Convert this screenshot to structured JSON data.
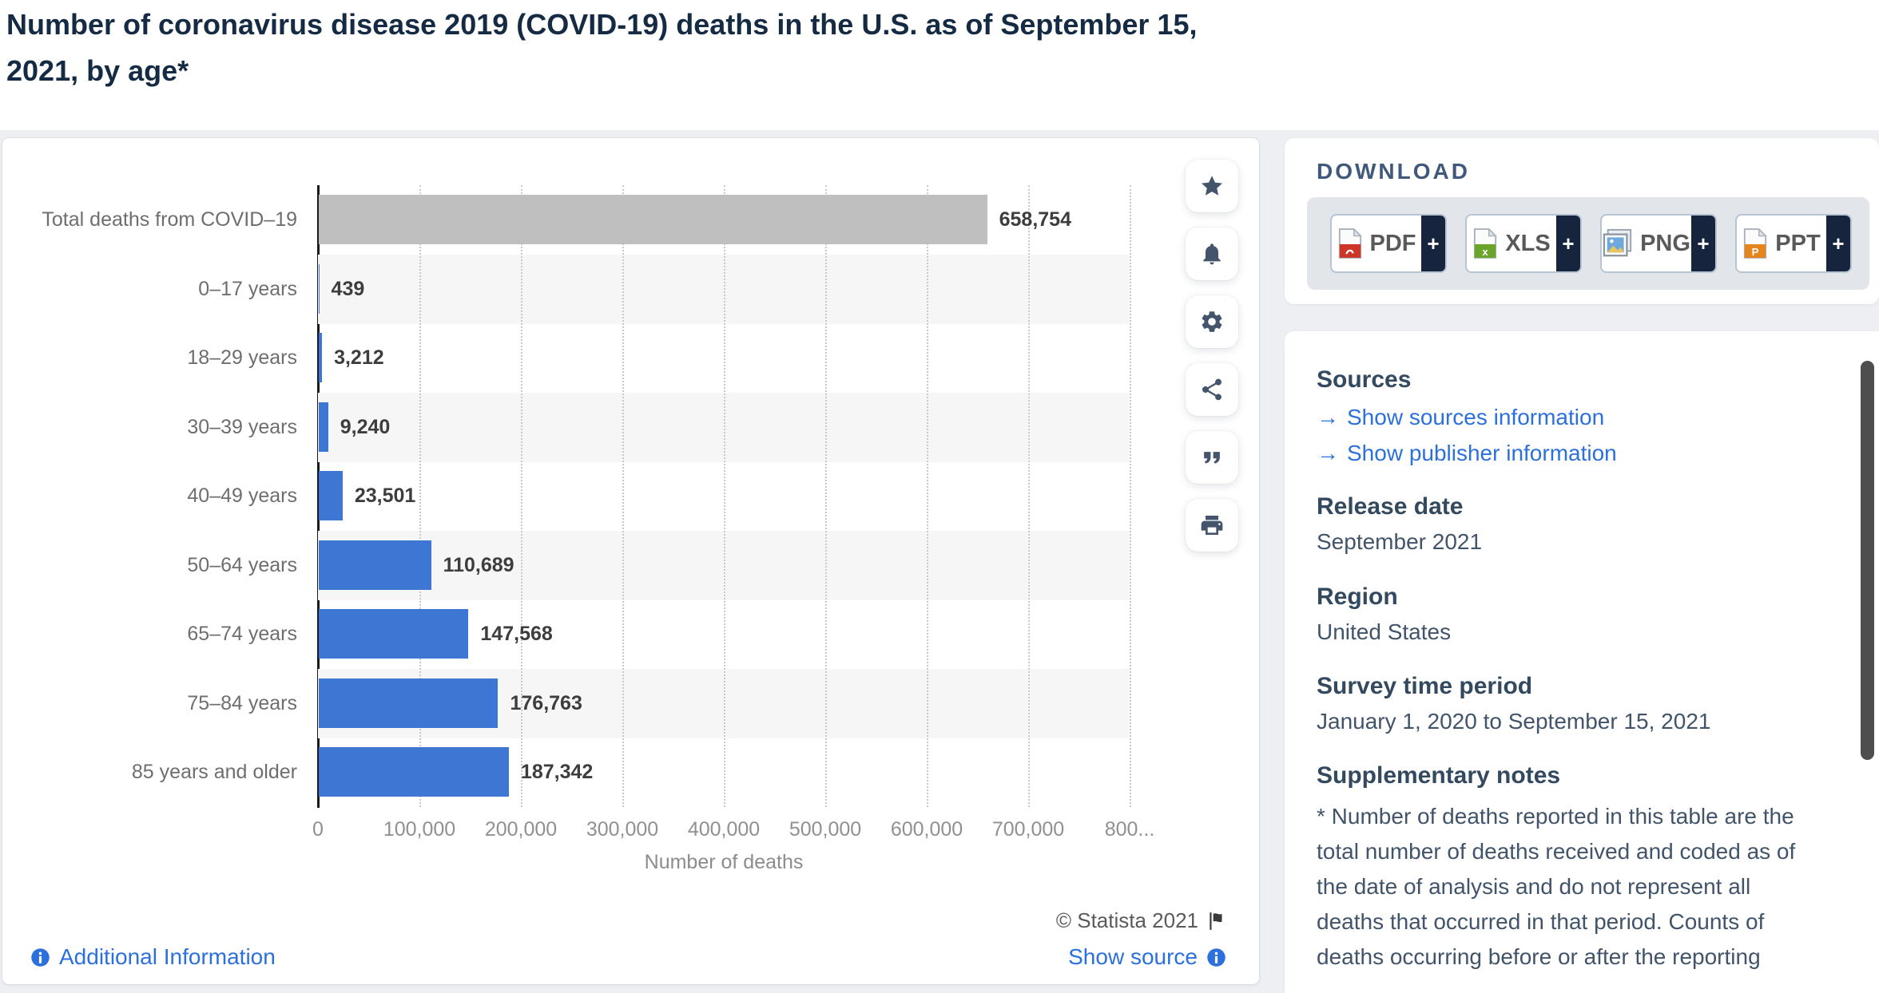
{
  "header": {
    "title": "Number of coronavirus disease 2019 (COVID-19) deaths in the U.S. as of September 15, 2021, by age*"
  },
  "chart_data": {
    "type": "bar",
    "orientation": "horizontal",
    "title": "Number of coronavirus disease 2019 (COVID-19) deaths in the U.S. as of September 15, 2021, by age*",
    "categories": [
      "Total deaths from COVID–19",
      "0–17 years",
      "18–29 years",
      "30–39 years",
      "40–49 years",
      "50–64 years",
      "65–74 years",
      "75–84 years",
      "85 years and older"
    ],
    "values": [
      658754,
      439,
      3212,
      9240,
      23501,
      110689,
      147568,
      176763,
      187342
    ],
    "value_labels": [
      "658,754",
      "439",
      "3,212",
      "9,240",
      "23,501",
      "110,689",
      "147,568",
      "176,763",
      "187,342"
    ],
    "bar_colors": [
      "#bfbfbf",
      "#3e77d3",
      "#3e77d3",
      "#3e77d3",
      "#3e77d3",
      "#3e77d3",
      "#3e77d3",
      "#3e77d3",
      "#3e77d3"
    ],
    "xlabel": "Number of deaths",
    "ylabel": "",
    "x_ticks": [
      "0",
      "100,000",
      "200,000",
      "300,000",
      "400,000",
      "500,000",
      "600,000",
      "700,000",
      "800..."
    ],
    "x_tick_values": [
      0,
      100000,
      200000,
      300000,
      400000,
      500000,
      600000,
      700000,
      800000
    ],
    "xlim": [
      0,
      800000
    ],
    "grid": "vertical-dotted",
    "legend": "none"
  },
  "toolbar": {
    "icons": [
      {
        "name": "star-icon"
      },
      {
        "name": "bell-icon"
      },
      {
        "name": "gear-icon"
      },
      {
        "name": "share-icon"
      },
      {
        "name": "quote-icon"
      },
      {
        "name": "print-icon"
      }
    ]
  },
  "download": {
    "heading": "DOWNLOAD",
    "buttons": [
      {
        "label": "PDF",
        "icon": "pdf-file-icon",
        "plus": "+"
      },
      {
        "label": "XLS",
        "icon": "xls-file-icon",
        "plus": "+"
      },
      {
        "label": "PNG",
        "icon": "png-file-icon",
        "plus": "+"
      },
      {
        "label": "PPT",
        "icon": "ppt-file-icon",
        "plus": "+"
      }
    ]
  },
  "details": {
    "sources_heading": "Sources",
    "links": [
      {
        "label": "Show sources information"
      },
      {
        "label": "Show publisher information"
      }
    ],
    "sections": [
      {
        "heading": "Release date",
        "value": "September 2021"
      },
      {
        "heading": "Region",
        "value": "United States"
      },
      {
        "heading": "Survey time period",
        "value": "January 1, 2020 to September 15, 2021"
      }
    ],
    "notes_heading": "Supplementary notes",
    "notes_text": "* Number of deaths reported in this table are the total number of deaths received and coded as of the date of analysis and do not represent all deaths that occurred in that period. Counts of deaths occurring before or after the reporting"
  },
  "footer": {
    "copyright": "© Statista 2021",
    "additional_information": "Additional Information",
    "show_source": "Show source"
  },
  "colors": {
    "bar_blue": "#3e77d3",
    "bar_gray": "#bfbfbf",
    "link_blue": "#2b70dc",
    "heading_navy": "#33495f",
    "title_navy": "#152b44",
    "plus_navy": "#16243d"
  }
}
